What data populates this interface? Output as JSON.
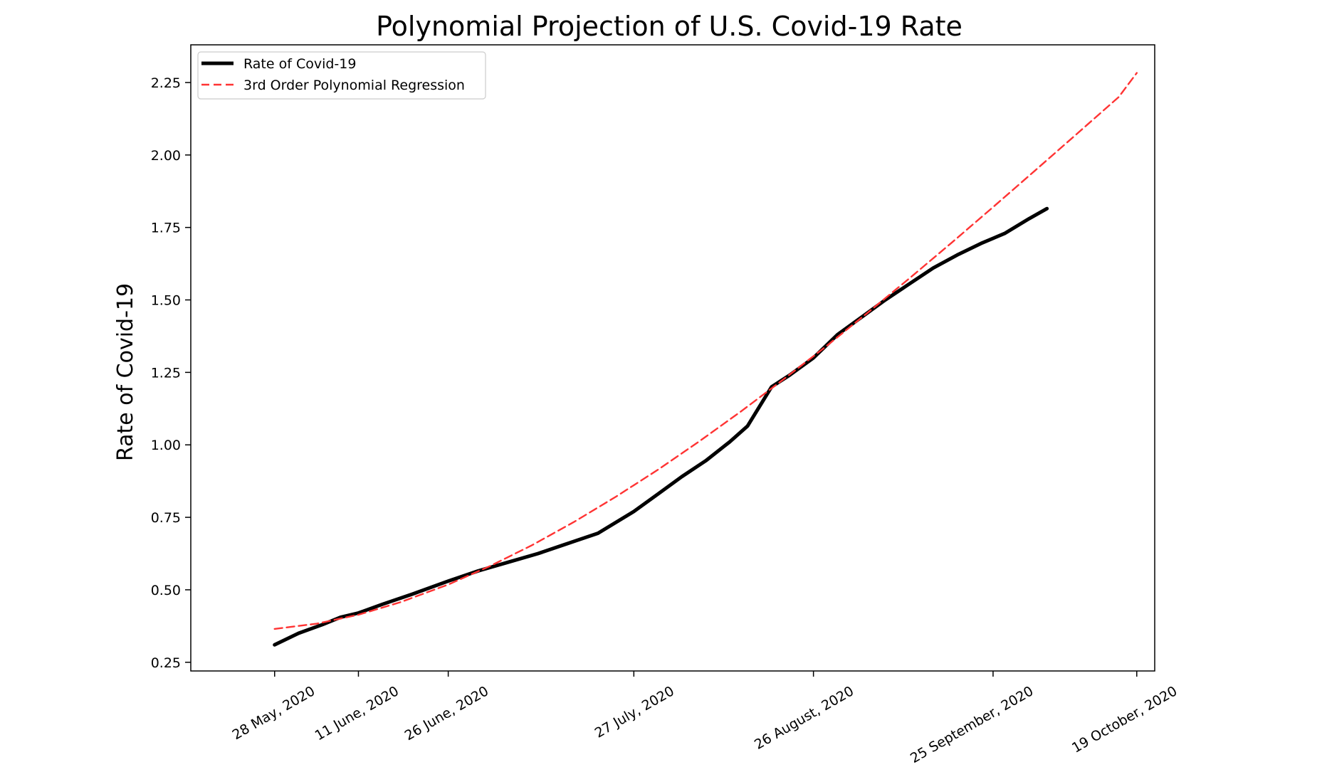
{
  "chart_data": {
    "type": "line",
    "title": "Polynomial Projection of U.S. Covid-19 Rate",
    "xlabel": "",
    "ylabel": "Rate of Covid-19",
    "x_axis": {
      "type": "date",
      "range": [
        "2020-05-14",
        "2020-10-22"
      ],
      "ticks": [
        {
          "date": "2020-05-28",
          "label": "28 May, 2020"
        },
        {
          "date": "2020-06-11",
          "label": "11 June, 2020"
        },
        {
          "date": "2020-06-26",
          "label": "26 June, 2020"
        },
        {
          "date": "2020-07-27",
          "label": "27 July, 2020"
        },
        {
          "date": "2020-08-26",
          "label": "26 August, 2020"
        },
        {
          "date": "2020-09-25",
          "label": "25 September, 2020"
        },
        {
          "date": "2020-10-19",
          "label": "19 October, 2020"
        }
      ]
    },
    "ylim": [
      0.22,
      2.38
    ],
    "y_ticks": [
      "0.25",
      "0.50",
      "0.75",
      "1.00",
      "1.25",
      "1.50",
      "1.75",
      "2.00",
      "2.25"
    ],
    "grid": false,
    "legend": "top-left",
    "series": [
      {
        "name": "Rate of Covid-19",
        "color": "#000000",
        "style": "solid",
        "x": [
          "2020-05-28",
          "2020-06-01",
          "2020-06-05",
          "2020-06-08",
          "2020-06-11",
          "2020-06-15",
          "2020-06-20",
          "2020-06-26",
          "2020-07-01",
          "2020-07-06",
          "2020-07-11",
          "2020-07-16",
          "2020-07-21",
          "2020-07-27",
          "2020-07-31",
          "2020-08-04",
          "2020-08-08",
          "2020-08-12",
          "2020-08-15",
          "2020-08-19",
          "2020-08-22",
          "2020-08-26",
          "2020-08-30",
          "2020-09-03",
          "2020-09-07",
          "2020-09-11",
          "2020-09-15",
          "2020-09-19",
          "2020-09-23",
          "2020-09-27",
          "2020-10-01",
          "2020-10-04"
        ],
        "y": [
          0.31,
          0.35,
          0.38,
          0.405,
          0.42,
          0.45,
          0.485,
          0.53,
          0.565,
          0.595,
          0.625,
          0.66,
          0.695,
          0.77,
          0.83,
          0.89,
          0.945,
          1.01,
          1.065,
          1.2,
          1.24,
          1.3,
          1.38,
          1.44,
          1.5,
          1.555,
          1.61,
          1.655,
          1.695,
          1.73,
          1.78,
          1.815
        ]
      },
      {
        "name": "3rd Order Polynomial Regression",
        "color": "#ff3333",
        "style": "dashed",
        "x": [
          "2020-05-28",
          "2020-06-04",
          "2020-06-11",
          "2020-06-18",
          "2020-06-26",
          "2020-07-03",
          "2020-07-10",
          "2020-07-17",
          "2020-07-24",
          "2020-07-31",
          "2020-08-07",
          "2020-08-14",
          "2020-08-21",
          "2020-08-28",
          "2020-09-04",
          "2020-09-11",
          "2020-09-18",
          "2020-09-25",
          "2020-10-02",
          "2020-10-09",
          "2020-10-16",
          "2020-10-19"
        ],
        "y": [
          0.365,
          0.383,
          0.414,
          0.457,
          0.518,
          0.582,
          0.654,
          0.734,
          0.821,
          0.914,
          1.013,
          1.117,
          1.226,
          1.338,
          1.455,
          1.574,
          1.696,
          1.82,
          1.946,
          2.073,
          2.2,
          2.283
        ]
      }
    ]
  }
}
